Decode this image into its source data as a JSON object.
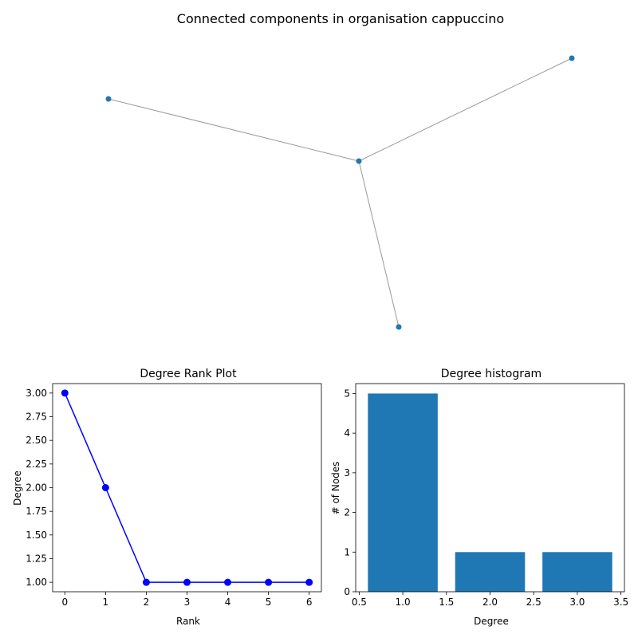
{
  "figure_title": "Connected components in organisation cappuccino",
  "colors": {
    "node": "#1f77b4",
    "edge": "#999999",
    "rank_line": "#0000ff",
    "bar": "#1f77b4"
  },
  "chart_data": [
    {
      "type": "network",
      "title": "Connected components in organisation cappuccino",
      "nodes": [
        {
          "id": "a"
        },
        {
          "id": "b"
        },
        {
          "id": "c"
        },
        {
          "id": "d"
        }
      ],
      "edges": [
        [
          "a",
          "b"
        ],
        [
          "b",
          "c"
        ],
        [
          "b",
          "d"
        ]
      ]
    },
    {
      "type": "line",
      "title": "Degree Rank Plot",
      "xlabel": "Rank",
      "ylabel": "Degree",
      "x": [
        0,
        1,
        2,
        3,
        4,
        5,
        6
      ],
      "values": [
        3,
        2,
        1,
        1,
        1,
        1,
        1
      ],
      "xlim": [
        -0.3,
        6.3
      ],
      "ylim": [
        0.9,
        3.1
      ],
      "xticks": [
        0,
        1,
        2,
        3,
        4,
        5,
        6
      ],
      "yticks": [
        1.0,
        1.25,
        1.5,
        1.75,
        2.0,
        2.25,
        2.5,
        2.75,
        3.0
      ],
      "ytick_labels": [
        "1.00",
        "1.25",
        "1.50",
        "1.75",
        "2.00",
        "2.25",
        "2.50",
        "2.75",
        "3.00"
      ],
      "grid": false
    },
    {
      "type": "bar",
      "title": "Degree histogram",
      "xlabel": "Degree",
      "ylabel": "# of Nodes",
      "x": [
        1,
        2,
        3
      ],
      "values": [
        5,
        1,
        1
      ],
      "bar_width": 0.8,
      "xlim": [
        0.46,
        3.54
      ],
      "ylim": [
        0,
        5.25
      ],
      "xticks": [
        0.5,
        1.0,
        1.5,
        2.0,
        2.5,
        3.0,
        3.5
      ],
      "xtick_labels": [
        "0.5",
        "1.0",
        "1.5",
        "2.0",
        "2.5",
        "3.0",
        "3.5"
      ],
      "yticks": [
        0,
        1,
        2,
        3,
        4,
        5
      ],
      "ytick_labels": [
        "0",
        "1",
        "2",
        "3",
        "4",
        "5"
      ],
      "grid": false
    }
  ]
}
